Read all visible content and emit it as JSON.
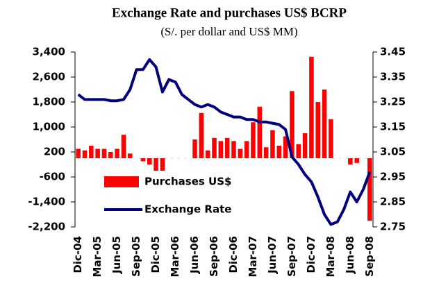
{
  "chart_data": {
    "type": "bar-line",
    "title": "Exchange Rate and purchases US$ BCRP",
    "subtitle": "(S/. per dollar and US$ MM)",
    "categories": [
      "Dic-04",
      null,
      null,
      "Mar-05",
      null,
      null,
      "Jun-05",
      null,
      null,
      "Sep-05",
      null,
      null,
      "Dic-05",
      null,
      null,
      "Mar-06",
      null,
      null,
      "Jun-06",
      null,
      null,
      "Sep-06",
      null,
      null,
      "Dic-06",
      null,
      null,
      "Mar-07",
      null,
      null,
      "Jun-07",
      null,
      null,
      "Sep-07",
      null,
      null,
      "Dic-07",
      null,
      null,
      "Mar-08",
      null,
      null,
      "Jun-08",
      null,
      null,
      "Sep-08"
    ],
    "series": [
      {
        "name": "Purchases US$",
        "color": "#ff0000",
        "kind": "bar",
        "values": [
          300,
          250,
          400,
          300,
          300,
          200,
          300,
          750,
          150,
          0,
          -100,
          -200,
          -400,
          -400,
          0,
          0,
          0,
          0,
          600,
          1450,
          250,
          650,
          550,
          650,
          550,
          300,
          550,
          1150,
          1650,
          350,
          900,
          400,
          700,
          2150,
          450,
          800,
          3250,
          1800,
          2200,
          1250,
          0,
          0,
          -200,
          -150,
          0,
          -2000
        ]
      },
      {
        "name": "Exchange Rate",
        "color": "#00007f",
        "kind": "line",
        "axis": "y2",
        "values": [
          3.28,
          3.26,
          3.26,
          3.26,
          3.26,
          3.255,
          3.255,
          3.26,
          3.3,
          3.38,
          3.38,
          3.42,
          3.39,
          3.29,
          3.34,
          3.33,
          3.28,
          3.26,
          3.24,
          3.23,
          3.24,
          3.23,
          3.21,
          3.2,
          3.19,
          3.19,
          3.18,
          3.18,
          3.17,
          3.17,
          3.165,
          3.16,
          3.14,
          3.03,
          3.0,
          2.96,
          2.93,
          2.87,
          2.8,
          2.76,
          2.77,
          2.82,
          2.89,
          2.85,
          2.9,
          2.97
        ]
      }
    ],
    "ylim": [
      -2200,
      3400
    ],
    "yticks": [
      {
        "value": -2200,
        "label": "-2,200"
      },
      {
        "value": -1400,
        "label": "-1,400"
      },
      -600,
      200,
      {
        "value": 1000,
        "label": "1,000"
      },
      {
        "value": 1800,
        "label": "1,800"
      },
      {
        "value": 2600,
        "label": "2,600"
      },
      {
        "value": 3400,
        "label": "3,400"
      }
    ],
    "y2lim": [
      2.75,
      3.45
    ],
    "y2ticks": [
      2.75,
      2.85,
      2.95,
      3.05,
      3.15,
      3.25,
      3.35,
      3.45
    ],
    "legend": "lower-left"
  }
}
